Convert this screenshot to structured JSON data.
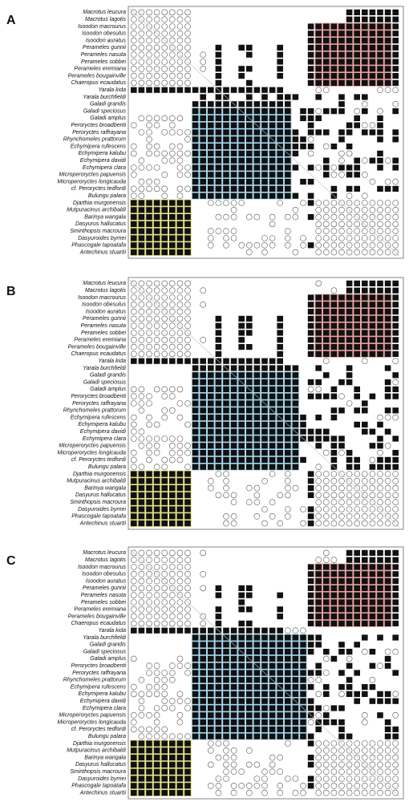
{
  "panels": [
    {
      "label": "A"
    },
    {
      "label": "B"
    },
    {
      "label": "C"
    }
  ],
  "taxa": [
    "Macrotus leucura",
    "Macrotus lagotis",
    "Isoodon macrourus",
    "Isoodon obesulus",
    "Isoodon auratus",
    "Perameles gunnii",
    "Perameles nasuta",
    "Perameles sobbei",
    "Perameles eremiana",
    "Perameles bougainville",
    "Chaeropus ecaudatus",
    "Yarala kida",
    "Yarala burchfieldi",
    "Galadi grandis",
    "Galadi speciosus",
    "Galadi amplus",
    "Peroryctes broadbenti",
    "Peroryctes raffrayana",
    "Rhynchomeles prattorum",
    "Echymipera rufescens",
    "Echymipera kalubu",
    "Echymipera davidi",
    "Echymipera clara",
    "Microperoryctes papuensis",
    "Microperoryctes longicauda",
    "cf. Peroryctes tedfordi",
    "Bulungu palara",
    "Djarthia murgonensis",
    "Mutpuracinus archibaldi",
    "Barinya wangala",
    "Dasyurus hallucatus",
    "Sminthopsis macroura",
    "Dasyuroides byrnei",
    "Phascogale tapoatafa",
    "Antechinus stuartii"
  ]
}
